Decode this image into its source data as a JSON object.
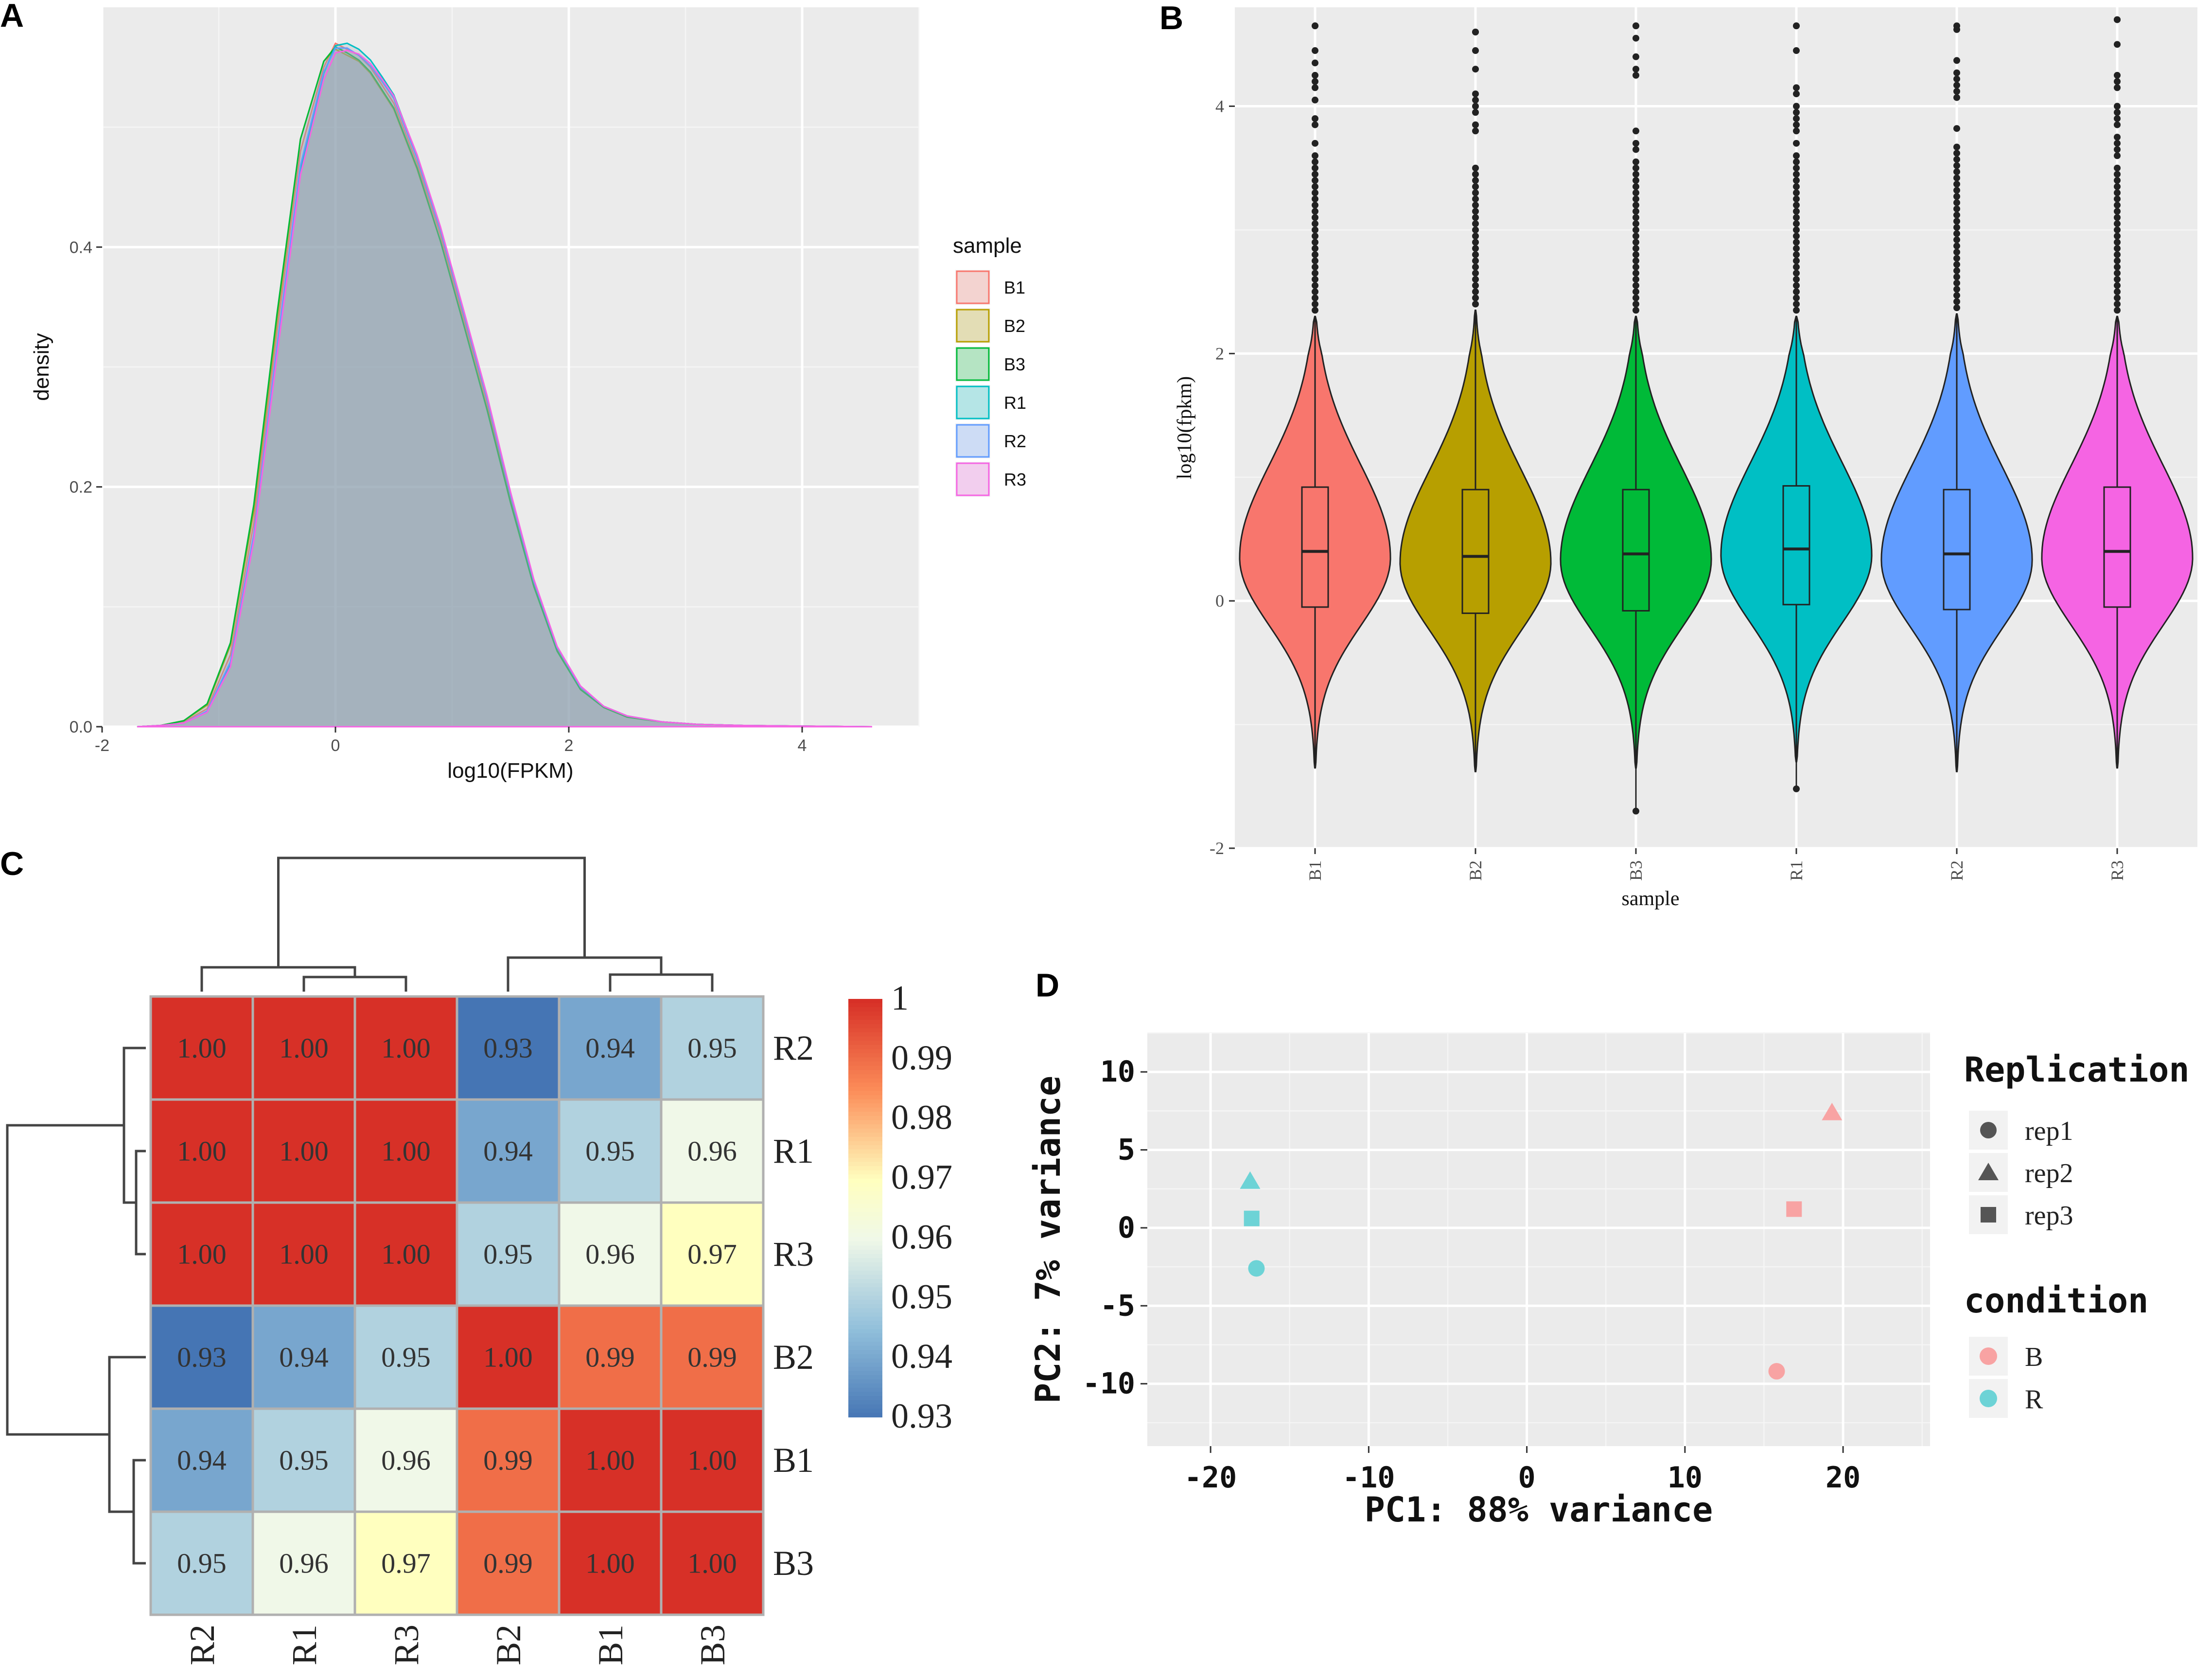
{
  "panels": [
    "A",
    "B",
    "C",
    "D"
  ],
  "chart_data": [
    {
      "panel": "A",
      "type": "area",
      "title": "",
      "xlabel": "log10(FPKM)",
      "ylabel": "density",
      "xlim": [
        -2,
        5
      ],
      "ylim": [
        0,
        0.6
      ],
      "xticks": [
        "-2",
        "0",
        "2",
        "4"
      ],
      "yticks": [
        "0.0",
        "0.2",
        "0.4"
      ],
      "x": [
        -1.7,
        -1.5,
        -1.3,
        -1.1,
        -0.9,
        -0.7,
        -0.5,
        -0.3,
        -0.1,
        0,
        0.1,
        0.2,
        0.3,
        0.4,
        0.5,
        0.7,
        0.9,
        1.1,
        1.3,
        1.5,
        1.7,
        1.9,
        2.1,
        2.3,
        2.5,
        2.8,
        3.1,
        3.5,
        4,
        4.6
      ],
      "series": [
        {
          "name": "B1",
          "values": [
            0,
            0.001,
            0.004,
            0.015,
            0.06,
            0.17,
            0.33,
            0.48,
            0.55,
            0.57,
            0.565,
            0.56,
            0.55,
            0.535,
            0.52,
            0.47,
            0.41,
            0.34,
            0.27,
            0.19,
            0.12,
            0.065,
            0.032,
            0.016,
            0.008,
            0.004,
            0.002,
            0.001,
            0.0005,
            0
          ]
        },
        {
          "name": "B2",
          "values": [
            0,
            0.001,
            0.005,
            0.018,
            0.068,
            0.18,
            0.34,
            0.49,
            0.555,
            0.565,
            0.56,
            0.555,
            0.545,
            0.53,
            0.515,
            0.465,
            0.405,
            0.335,
            0.265,
            0.188,
            0.118,
            0.064,
            0.031,
            0.016,
            0.008,
            0.004,
            0.002,
            0.001,
            0.0005,
            0
          ]
        },
        {
          "name": "B3",
          "values": [
            0,
            0.001,
            0.005,
            0.019,
            0.07,
            0.185,
            0.345,
            0.49,
            0.555,
            0.567,
            0.562,
            0.556,
            0.546,
            0.531,
            0.516,
            0.466,
            0.405,
            0.335,
            0.264,
            0.187,
            0.117,
            0.063,
            0.031,
            0.016,
            0.008,
            0.004,
            0.002,
            0.001,
            0.0005,
            0
          ]
        },
        {
          "name": "R1",
          "values": [
            0,
            0.001,
            0.003,
            0.012,
            0.052,
            0.158,
            0.315,
            0.465,
            0.545,
            0.568,
            0.57,
            0.565,
            0.556,
            0.542,
            0.527,
            0.476,
            0.415,
            0.345,
            0.274,
            0.194,
            0.122,
            0.066,
            0.033,
            0.017,
            0.009,
            0.004,
            0.002,
            0.001,
            0.0005,
            0
          ]
        },
        {
          "name": "R2",
          "values": [
            0,
            0.001,
            0.003,
            0.013,
            0.054,
            0.16,
            0.318,
            0.468,
            0.546,
            0.566,
            0.566,
            0.56,
            0.551,
            0.538,
            0.524,
            0.474,
            0.414,
            0.344,
            0.273,
            0.193,
            0.121,
            0.066,
            0.033,
            0.017,
            0.009,
            0.004,
            0.002,
            0.001,
            0.0005,
            0
          ]
        },
        {
          "name": "R3",
          "values": [
            0,
            0.001,
            0.003,
            0.012,
            0.05,
            0.155,
            0.31,
            0.46,
            0.54,
            0.562,
            0.564,
            0.561,
            0.553,
            0.54,
            0.526,
            0.477,
            0.417,
            0.347,
            0.276,
            0.196,
            0.123,
            0.067,
            0.034,
            0.017,
            0.009,
            0.004,
            0.002,
            0.001,
            0.0005,
            0
          ]
        }
      ],
      "legend": {
        "title": "sample",
        "items": [
          "B1",
          "B2",
          "B3",
          "R1",
          "R2",
          "R3"
        ]
      },
      "colors": [
        "#f8766d",
        "#b79f00",
        "#00ba38",
        "#00bfc4",
        "#619cff",
        "#f564e3"
      ],
      "fill": "#93a2b2"
    },
    {
      "panel": "B",
      "type": "violin",
      "title": "",
      "xlabel": "sample",
      "ylabel": "log10(fpkm)",
      "ylim": [
        -2,
        4.8
      ],
      "yticks": [
        "-2",
        "0",
        "2",
        "4"
      ],
      "categories": [
        "B1",
        "B2",
        "B3",
        "R1",
        "R2",
        "R3"
      ],
      "colors": [
        "#f8766d",
        "#b79f00",
        "#00ba38",
        "#00bfc4",
        "#619cff",
        "#f564e3"
      ],
      "boxes": [
        {
          "q1": -0.05,
          "median": 0.4,
          "q3": 0.92,
          "wlo": -1.35,
          "whi": 2.3,
          "min": -1.35,
          "max": 4.65
        },
        {
          "q1": -0.1,
          "median": 0.36,
          "q3": 0.9,
          "wlo": -1.38,
          "whi": 2.35,
          "min": -1.38,
          "max": 4.6
        },
        {
          "q1": -0.08,
          "median": 0.38,
          "q3": 0.9,
          "wlo": -1.35,
          "whi": 2.3,
          "min": -1.7,
          "max": 4.65
        },
        {
          "q1": -0.03,
          "median": 0.42,
          "q3": 0.93,
          "wlo": -1.3,
          "whi": 2.3,
          "min": -1.52,
          "max": 4.65
        },
        {
          "q1": -0.07,
          "median": 0.38,
          "q3": 0.9,
          "wlo": -1.38,
          "whi": 2.32,
          "min": -1.38,
          "max": 4.65
        },
        {
          "q1": -0.05,
          "median": 0.4,
          "q3": 0.92,
          "wlo": -1.35,
          "whi": 2.3,
          "min": -1.35,
          "max": 4.7
        }
      ]
    },
    {
      "panel": "C",
      "type": "heatmap",
      "title": "",
      "columns": [
        "R2",
        "R1",
        "R3",
        "B2",
        "B1",
        "B3"
      ],
      "rows": [
        "R2",
        "R1",
        "R3",
        "B2",
        "B1",
        "B3"
      ],
      "values": [
        [
          1.0,
          1.0,
          1.0,
          0.93,
          0.94,
          0.95
        ],
        [
          1.0,
          1.0,
          1.0,
          0.94,
          0.95,
          0.96
        ],
        [
          1.0,
          1.0,
          1.0,
          0.95,
          0.96,
          0.97
        ],
        [
          0.93,
          0.94,
          0.95,
          1.0,
          0.99,
          0.99
        ],
        [
          0.94,
          0.95,
          0.96,
          0.99,
          1.0,
          1.0
        ],
        [
          0.95,
          0.96,
          0.97,
          0.99,
          1.0,
          1.0
        ]
      ],
      "labels": [
        [
          "1.00",
          "1.00",
          "1.00",
          "0.93",
          "0.94",
          "0.95"
        ],
        [
          "1.00",
          "1.00",
          "1.00",
          "0.94",
          "0.95",
          "0.96"
        ],
        [
          "1.00",
          "1.00",
          "1.00",
          "0.95",
          "0.96",
          "0.97"
        ],
        [
          "0.93",
          "0.94",
          "0.95",
          "1.00",
          "0.99",
          "0.99"
        ],
        [
          "0.94",
          "0.95",
          "0.96",
          "0.99",
          "1.00",
          "1.00"
        ],
        [
          "0.95",
          "0.96",
          "0.97",
          "0.99",
          "1.00",
          "1.00"
        ]
      ],
      "vmin": 0.93,
      "vmax": 1.0,
      "colorbar_ticks": [
        "1",
        "0.99",
        "0.98",
        "0.97",
        "0.96",
        "0.95",
        "0.94",
        "0.93"
      ],
      "colorbar_values": [
        1,
        0.99,
        0.98,
        0.97,
        0.96,
        0.95,
        0.94,
        0.93
      ]
    },
    {
      "panel": "D",
      "type": "scatter",
      "title": "",
      "xlabel": "PC1: 88% variance",
      "ylabel": "PC2: 7% variance",
      "xlim": [
        -24,
        25.5
      ],
      "ylim": [
        -14,
        12.5
      ],
      "xticks": [
        "-20",
        "-10",
        "0",
        "10",
        "20"
      ],
      "yticks": [
        "10",
        "5",
        "0",
        "-5",
        "-10"
      ],
      "points": [
        {
          "x": -17.5,
          "y": 3.0,
          "condition": "R",
          "rep": "rep2"
        },
        {
          "x": -17.4,
          "y": 0.6,
          "condition": "R",
          "rep": "rep3"
        },
        {
          "x": -17.1,
          "y": -2.6,
          "condition": "R",
          "rep": "rep1"
        },
        {
          "x": 19.3,
          "y": 7.4,
          "condition": "B",
          "rep": "rep2"
        },
        {
          "x": 16.9,
          "y": 1.2,
          "condition": "B",
          "rep": "rep3"
        },
        {
          "x": 15.8,
          "y": -9.2,
          "condition": "B",
          "rep": "rep1"
        }
      ],
      "legend_shape": {
        "title": "Replication",
        "items": [
          "rep1",
          "rep2",
          "rep3"
        ]
      },
      "legend_color": {
        "title": "condition",
        "items": [
          "B",
          "R"
        ],
        "colors": [
          "#f8a3a3",
          "#6dd3d6"
        ]
      }
    }
  ]
}
